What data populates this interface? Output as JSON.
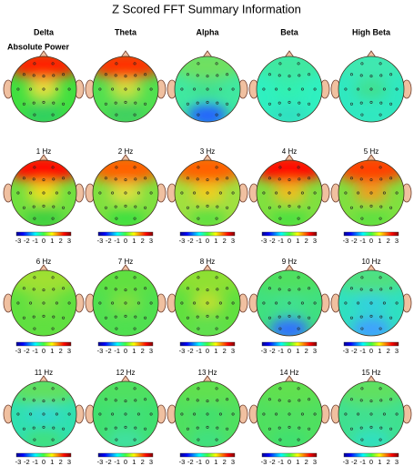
{
  "title": "Z Scored FFT Summary Information",
  "columns": [
    "Delta",
    "Theta",
    "Alpha",
    "Beta",
    "High Beta"
  ],
  "row_label": "Absolute Power",
  "maps": [
    [
      "1 Hz",
      "2 Hz",
      "3 Hz",
      "4 Hz",
      "5 Hz"
    ],
    [
      "6 Hz",
      "7 Hz",
      "8 Hz",
      "9 Hz",
      "10 Hz"
    ],
    [
      "11 Hz",
      "12 Hz",
      "13 Hz",
      "14 Hz",
      "15 Hz"
    ]
  ],
  "colorbar_ticks": [
    -3,
    -2,
    -1,
    0,
    1,
    2,
    3
  ]
}
